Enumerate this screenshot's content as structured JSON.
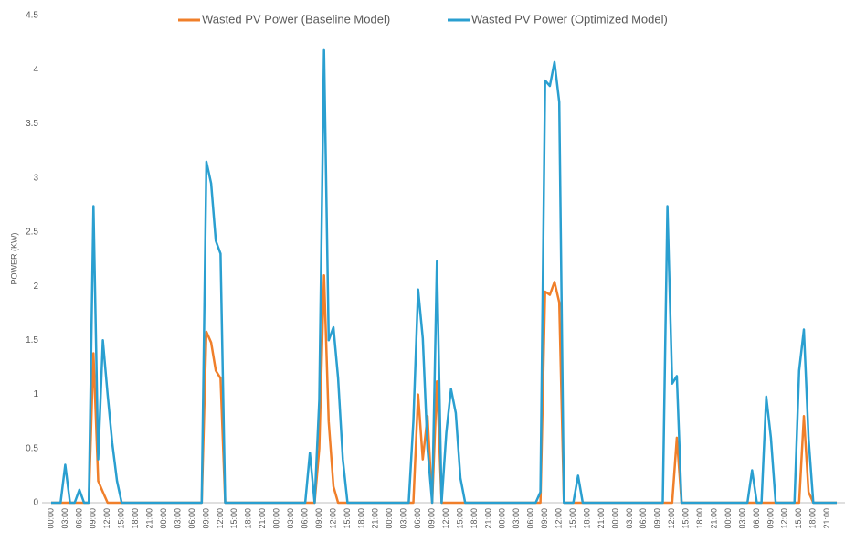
{
  "chart_data": {
    "type": "line",
    "y_label": "POWER (KW)",
    "ylim": [
      0,
      4.5
    ],
    "yticks": [
      0,
      0.5,
      1,
      1.5,
      2,
      2.5,
      3,
      3.5,
      4,
      4.5
    ],
    "legend": "top",
    "categories": [
      "00:00",
      null,
      null,
      "03:00",
      null,
      null,
      "06:00",
      null,
      null,
      "09:00",
      null,
      null,
      "12:00",
      null,
      null,
      "15:00",
      null,
      null,
      "18:00",
      null,
      null,
      "21:00",
      null,
      null,
      "00:00",
      null,
      null,
      "03:00",
      null,
      null,
      "06:00",
      null,
      null,
      "09:00",
      null,
      null,
      "12:00",
      null,
      null,
      "15:00",
      null,
      null,
      "18:00",
      null,
      null,
      "21:00",
      null,
      null,
      "00:00",
      null,
      null,
      "03:00",
      null,
      null,
      "06:00",
      null,
      null,
      "09:00",
      null,
      null,
      "12:00",
      null,
      null,
      "15:00",
      null,
      null,
      "18:00",
      null,
      null,
      "21:00",
      null,
      null,
      "00:00",
      null,
      null,
      "03:00",
      null,
      null,
      "06:00",
      null,
      null,
      "09:00",
      null,
      null,
      "12:00",
      null,
      null,
      "15:00",
      null,
      null,
      "18:00",
      null,
      null,
      "21:00",
      null,
      null,
      "00:00",
      null,
      null,
      "03:00",
      null,
      null,
      "06:00",
      null,
      null,
      "09:00",
      null,
      null,
      "12:00",
      null,
      null,
      "15:00",
      null,
      null,
      "18:00",
      null,
      null,
      "21:00",
      null,
      null,
      "00:00",
      null,
      null,
      "03:00",
      null,
      null,
      "06:00",
      null,
      null,
      "09:00",
      null,
      null,
      "12:00",
      null,
      null,
      "15:00",
      null,
      null,
      "18:00",
      null,
      null,
      "21:00",
      null,
      null,
      "00:00",
      null,
      null,
      "03:00",
      null,
      null,
      "06:00",
      null,
      null,
      "09:00",
      null,
      null,
      "12:00",
      null,
      null,
      "15:00",
      null,
      null,
      "18:00",
      null,
      null,
      "21:00",
      null,
      null
    ],
    "series": [
      {
        "name": "Wasted PV Power (Baseline Model)",
        "color": "#f07f2a",
        "values": [
          0,
          0,
          0,
          0,
          0,
          0,
          0,
          0,
          0,
          1.38,
          0.2,
          0.1,
          0,
          0,
          0,
          0,
          0,
          0,
          0,
          0,
          0,
          0,
          0,
          0,
          0,
          0,
          0,
          0,
          0,
          0,
          0,
          0,
          0,
          1.58,
          1.48,
          1.22,
          1.15,
          0,
          0,
          0,
          0,
          0,
          0,
          0,
          0,
          0,
          0,
          0,
          0,
          0,
          0,
          0,
          0,
          0,
          0,
          0,
          0,
          0.5,
          2.1,
          0.75,
          0.15,
          0,
          0,
          0,
          0,
          0,
          0,
          0,
          0,
          0,
          0,
          0,
          0,
          0,
          0,
          0,
          0,
          0,
          1.0,
          0.4,
          0.8,
          0,
          1.12,
          0,
          0,
          0,
          0,
          0,
          0,
          0,
          0,
          0,
          0,
          0,
          0,
          0,
          0,
          0,
          0,
          0,
          0,
          0,
          0,
          0,
          0,
          1.95,
          1.92,
          2.04,
          1.85,
          0,
          0,
          0,
          0,
          0,
          0,
          0,
          0,
          0,
          0,
          0,
          0,
          0,
          0,
          0,
          0,
          0,
          0,
          0,
          0,
          0,
          0,
          0,
          0,
          0.6,
          0,
          0,
          0,
          0,
          0,
          0,
          0,
          0,
          0,
          0,
          0,
          0,
          0,
          0,
          0,
          0,
          0,
          0,
          0,
          0,
          0,
          0,
          0,
          0,
          0,
          0,
          0.8,
          0.1,
          0,
          0,
          0,
          0,
          0,
          0
        ]
      },
      {
        "name": "Wasted PV Power (Optimized Model)",
        "color": "#2a9fd0",
        "values": [
          0,
          0,
          0,
          0.35,
          0,
          0,
          0.12,
          0,
          0,
          2.74,
          0.4,
          1.5,
          1.0,
          0.55,
          0.2,
          0,
          0,
          0,
          0,
          0,
          0,
          0,
          0,
          0,
          0,
          0,
          0,
          0,
          0,
          0,
          0,
          0,
          0,
          3.15,
          2.95,
          2.42,
          2.3,
          0,
          0,
          0,
          0,
          0,
          0,
          0,
          0,
          0,
          0,
          0,
          0,
          0,
          0,
          0,
          0,
          0,
          0,
          0.46,
          0,
          0.95,
          4.18,
          1.5,
          1.62,
          1.15,
          0.4,
          0,
          0,
          0,
          0,
          0,
          0,
          0,
          0,
          0,
          0,
          0,
          0,
          0,
          0,
          0.75,
          1.97,
          1.52,
          0.5,
          0,
          2.23,
          0,
          0.65,
          1.05,
          0.83,
          0.23,
          0,
          0,
          0,
          0,
          0,
          0,
          0,
          0,
          0,
          0,
          0,
          0,
          0,
          0,
          0,
          0,
          0.1,
          3.9,
          3.85,
          4.07,
          3.7,
          0,
          0,
          0,
          0.25,
          0,
          0,
          0,
          0,
          0,
          0,
          0,
          0,
          0,
          0,
          0,
          0,
          0,
          0,
          0,
          0,
          0,
          0,
          2.74,
          1.1,
          1.17,
          0,
          0,
          0,
          0,
          0,
          0,
          0,
          0,
          0,
          0,
          0,
          0,
          0,
          0,
          0,
          0.3,
          0,
          0,
          0.98,
          0.6,
          0,
          0,
          0,
          0,
          0,
          1.22,
          1.6,
          0.6,
          0,
          0,
          0,
          0,
          0,
          0
        ]
      }
    ]
  }
}
